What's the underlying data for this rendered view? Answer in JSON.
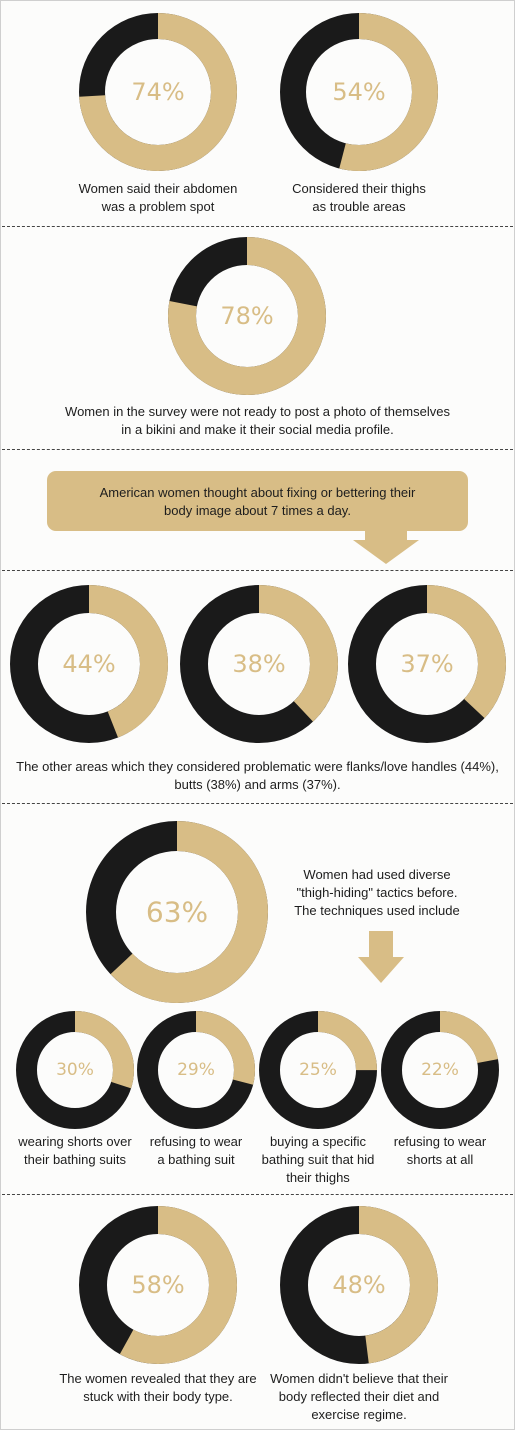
{
  "colors": {
    "primary": "#d8bd86",
    "secondary": "#1a1a1a"
  },
  "chart_data": [
    {
      "type": "pie",
      "values": [
        74
      ],
      "labels": [
        "74%"
      ],
      "caption": [
        "Women said their abdomen",
        "was a problem spot"
      ]
    },
    {
      "type": "pie",
      "values": [
        54
      ],
      "labels": [
        "54%"
      ],
      "caption": [
        "Considered their thighs",
        "as trouble areas"
      ]
    },
    {
      "type": "pie",
      "values": [
        78
      ],
      "labels": [
        "78%"
      ],
      "caption": [
        "Women in the survey were not ready to post a photo of themselves",
        "in a bikini and make it their social media profile."
      ]
    },
    {
      "type": "pie",
      "values": [
        44,
        38,
        37
      ],
      "labels": [
        "44%",
        "38%",
        "37%"
      ],
      "caption": [
        "The other areas which they considered problematic were flanks/love handles (44%),",
        "butts (38%) and arms (37%)."
      ]
    },
    {
      "type": "pie",
      "values": [
        63
      ],
      "labels": [
        "63%"
      ],
      "caption": [
        "Women had used diverse",
        "\"thigh-hiding\" tactics before.",
        "The techniques used include"
      ]
    },
    {
      "type": "pie",
      "values": [
        30,
        29,
        25,
        22
      ],
      "labels": [
        "30%",
        "29%",
        "25%",
        "22%"
      ],
      "captions": [
        [
          "wearing shorts over",
          "their bathing suits"
        ],
        [
          "refusing to wear",
          "a bathing suit"
        ],
        [
          "buying a specific",
          "bathing suit that hid",
          "their thighs"
        ],
        [
          "refusing to wear",
          "shorts at all"
        ]
      ]
    },
    {
      "type": "pie",
      "values": [
        58
      ],
      "labels": [
        "58%"
      ],
      "caption": [
        "The women revealed that they are",
        "stuck with their body type."
      ]
    },
    {
      "type": "pie",
      "values": [
        48
      ],
      "labels": [
        "48%"
      ],
      "caption": [
        "Women didn't believe that their",
        "body reflected their diet and",
        "exercise regime."
      ]
    }
  ],
  "callout": {
    "lines": [
      "American women thought about fixing or bettering their",
      "body image about 7 times a day."
    ]
  }
}
